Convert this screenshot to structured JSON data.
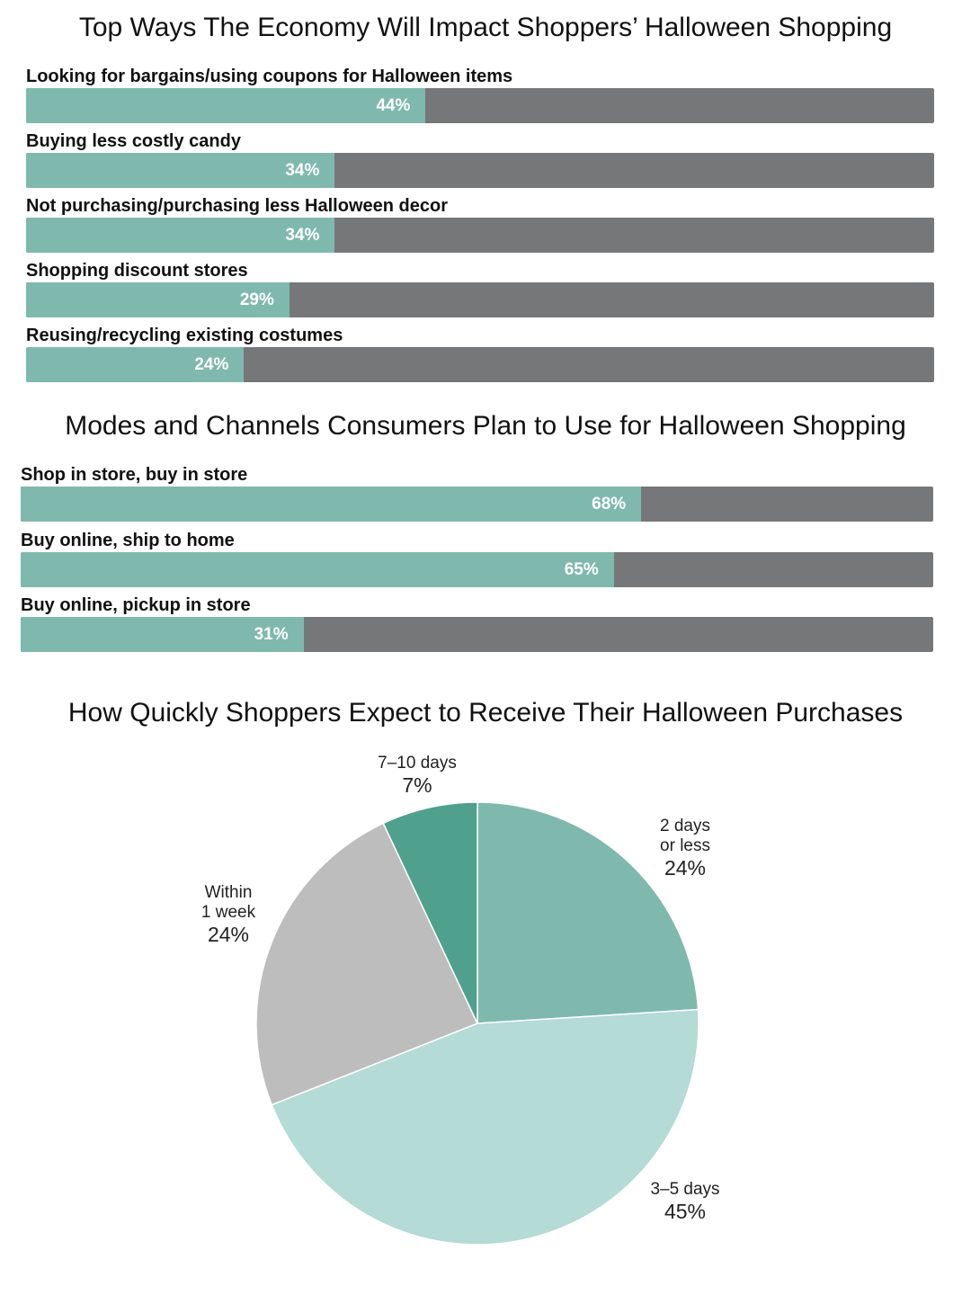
{
  "chart_data": [
    {
      "type": "bar",
      "orientation": "horizontal",
      "title": "Top Ways The Economy Will Impact Shoppers’ Halloween Shopping",
      "categories": [
        "Looking for bargains/using coupons for Halloween items",
        "Buying less costly candy",
        "Not purchasing/purchasing less Halloween decor",
        "Shopping discount stores",
        "Reusing/recycling existing costumes"
      ],
      "values": [
        44,
        34,
        34,
        29,
        24
      ],
      "value_labels": [
        "44%",
        "34%",
        "34%",
        "29%",
        "24%"
      ],
      "xlim": [
        0,
        100
      ],
      "colors": {
        "fill": "#7fb9ad",
        "track": "#767779",
        "value_text": "#ffffff"
      }
    },
    {
      "type": "bar",
      "orientation": "horizontal",
      "title": "Modes and Channels Consumers Plan to Use for Halloween Shopping",
      "categories": [
        "Shop in store, buy in store",
        "Buy online, ship to home",
        "Buy online, pickup in store"
      ],
      "values": [
        68,
        65,
        31
      ],
      "value_labels": [
        "68%",
        "65%",
        "31%"
      ],
      "xlim": [
        0,
        100
      ],
      "colors": {
        "fill": "#7fb9ad",
        "track": "#767779",
        "value_text": "#ffffff"
      }
    },
    {
      "type": "pie",
      "title": "How Quickly Shoppers Expect to Receive Their Halloween Purchases",
      "slices": [
        {
          "label": [
            "2 days",
            "or less"
          ],
          "value": 24,
          "value_label": "24%",
          "color": "#7fb9ad"
        },
        {
          "label": [
            "3–5 days"
          ],
          "value": 45,
          "value_label": "45%",
          "color": "#b4dbd6"
        },
        {
          "label": [
            "Within",
            "1 week"
          ],
          "value": 24,
          "value_label": "24%",
          "color": "#bdbdbd"
        },
        {
          "label": [
            "7–10 days"
          ],
          "value": 7,
          "value_label": "7%",
          "color": "#4fa08d"
        }
      ]
    }
  ]
}
